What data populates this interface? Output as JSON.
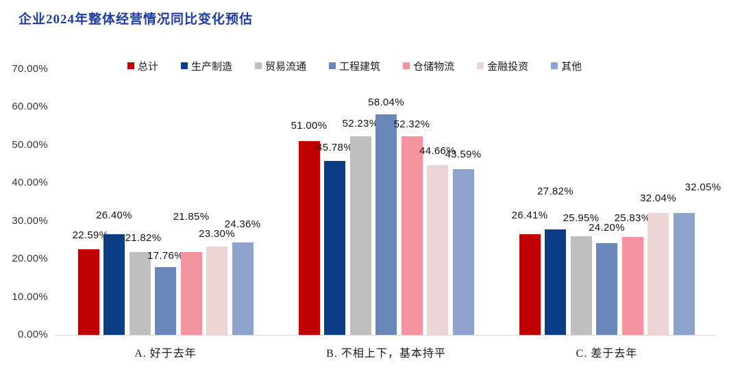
{
  "title": "企业2024年整体经营情况同比变化预估",
  "title_color": "#1e3ca0",
  "chart_data": {
    "type": "bar",
    "title": "企业2024年整体经营情况同比变化预估",
    "categories": [
      "A. 好于去年",
      "B. 不相上下，基本持平",
      "C. 差于去年"
    ],
    "series": [
      {
        "name": "总计",
        "color": "#c00000",
        "values": [
          22.59,
          51.0,
          26.41
        ]
      },
      {
        "name": "生产制造",
        "color": "#0b3c86",
        "values": [
          26.4,
          45.78,
          27.82
        ]
      },
      {
        "name": "贸易流通",
        "color": "#bfbfbf",
        "values": [
          21.82,
          52.23,
          25.95
        ]
      },
      {
        "name": "工程建筑",
        "color": "#6a87b9",
        "values": [
          17.76,
          58.04,
          24.2
        ]
      },
      {
        "name": "仓储物流",
        "color": "#f394a0",
        "values": [
          21.85,
          52.32,
          25.83
        ]
      },
      {
        "name": "金融投资",
        "color": "#edd5d6",
        "values": [
          23.3,
          44.66,
          32.04
        ]
      },
      {
        "name": "其他",
        "color": "#8da3ce",
        "values": [
          24.36,
          43.59,
          32.05
        ]
      }
    ],
    "data_labels": [
      [
        "22.59%",
        "51.00%",
        "26.41%"
      ],
      [
        "26.40%",
        "45.78%",
        "27.82%"
      ],
      [
        "21.82%",
        "52.23%",
        "25.95%"
      ],
      [
        "17.76%",
        "58.04%",
        "24.20%"
      ],
      [
        "21.85%",
        "52.32%",
        "25.83%"
      ],
      [
        "23.30%",
        "44.66%",
        "32.04%"
      ],
      [
        "24.36%",
        "43.59%",
        "32.05%"
      ]
    ],
    "y_axis": {
      "min": 0,
      "max": 70,
      "step": 10,
      "tick_labels": [
        "0.00%",
        "10.00%",
        "20.00%",
        "30.00%",
        "40.00%",
        "50.00%",
        "60.00%",
        "70.00%"
      ]
    },
    "legend_position": "top",
    "grid": false
  }
}
